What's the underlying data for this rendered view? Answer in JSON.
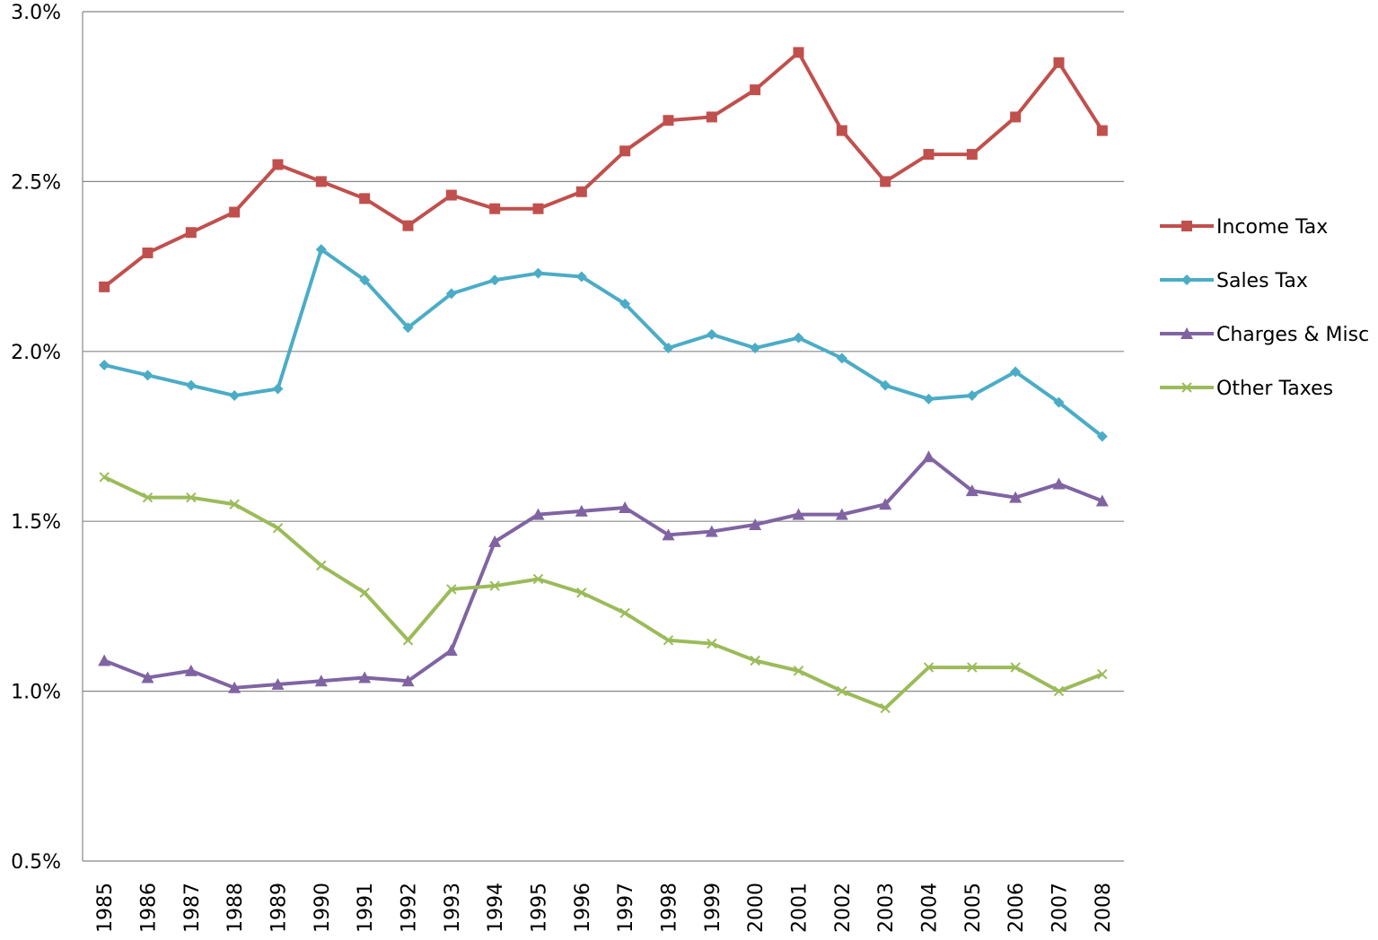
{
  "chart_data": {
    "type": "line",
    "categories": [
      "1985",
      "1986",
      "1987",
      "1988",
      "1989",
      "1990",
      "1991",
      "1992",
      "1993",
      "1994",
      "1995",
      "1996",
      "1997",
      "1998",
      "1999",
      "2000",
      "2001",
      "2002",
      "2003",
      "2004",
      "2005",
      "2006",
      "2007",
      "2008"
    ],
    "series": [
      {
        "name": "Income Tax",
        "color": "#c0504d",
        "marker": "square",
        "values": [
          2.19,
          2.29,
          2.35,
          2.41,
          2.55,
          2.5,
          2.45,
          2.37,
          2.46,
          2.42,
          2.42,
          2.47,
          2.59,
          2.68,
          2.69,
          2.77,
          2.88,
          2.65,
          2.5,
          2.58,
          2.58,
          2.69,
          2.85,
          2.65
        ]
      },
      {
        "name": "Sales Tax",
        "color": "#4bacc6",
        "marker": "diamond",
        "values": [
          1.96,
          1.93,
          1.9,
          1.87,
          1.89,
          2.3,
          2.21,
          2.07,
          2.17,
          2.21,
          2.23,
          2.22,
          2.14,
          2.01,
          2.05,
          2.01,
          2.04,
          1.98,
          1.9,
          1.86,
          1.87,
          1.94,
          1.85,
          1.75
        ]
      },
      {
        "name": "Charges & Misc",
        "color": "#8064a2",
        "marker": "triangle",
        "values": [
          1.09,
          1.04,
          1.06,
          1.01,
          1.02,
          1.03,
          1.04,
          1.03,
          1.12,
          1.44,
          1.52,
          1.53,
          1.54,
          1.46,
          1.47,
          1.49,
          1.52,
          1.52,
          1.55,
          1.69,
          1.59,
          1.57,
          1.61,
          1.56
        ]
      },
      {
        "name": "Other Taxes",
        "color": "#9bbb59",
        "marker": "x",
        "values": [
          1.63,
          1.57,
          1.57,
          1.55,
          1.48,
          1.37,
          1.29,
          1.15,
          1.3,
          1.31,
          1.33,
          1.29,
          1.23,
          1.15,
          1.14,
          1.09,
          1.06,
          1.0,
          0.95,
          1.07,
          1.07,
          1.07,
          1.0,
          1.05
        ]
      }
    ],
    "ylim": [
      0.5,
      3.0
    ],
    "yticks": [
      {
        "value": 0.5,
        "label": "0.5%"
      },
      {
        "value": 1.0,
        "label": "1.0%"
      },
      {
        "value": 1.5,
        "label": "1.5%"
      },
      {
        "value": 2.0,
        "label": "2.0%"
      },
      {
        "value": 2.5,
        "label": "2.5%"
      },
      {
        "value": 3.0,
        "label": "3.0%"
      }
    ],
    "grid": true,
    "legend": "right"
  }
}
